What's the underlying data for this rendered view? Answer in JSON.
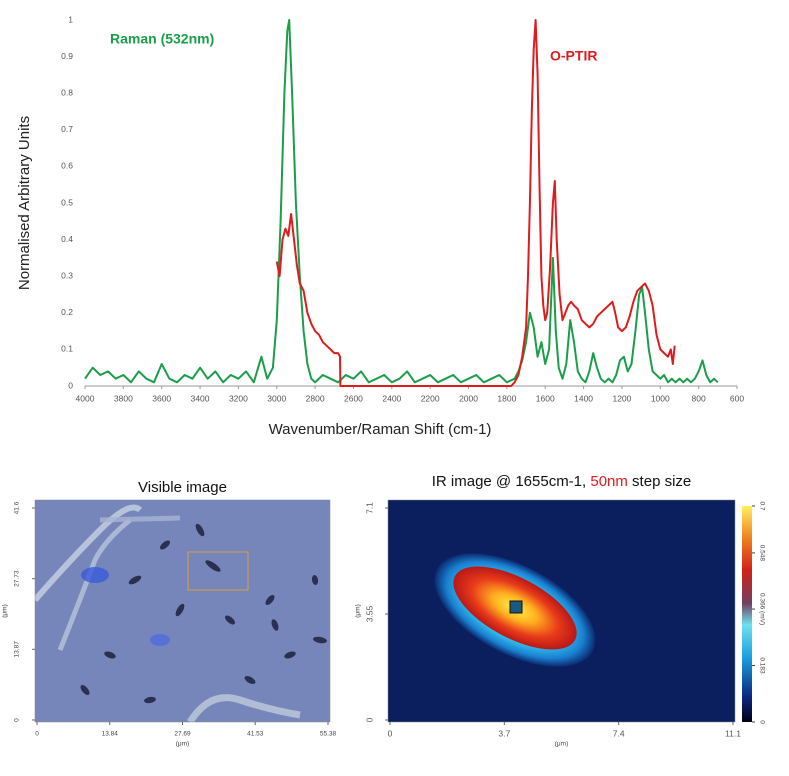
{
  "chart_data": [
    {
      "type": "line",
      "ylabel": "Normalised Arbitrary Units",
      "xlabel": "Wavenumber/Raman Shift (cm-1)",
      "xlim": [
        4000,
        600
      ],
      "xticks": [
        4000,
        3800,
        3600,
        3400,
        3200,
        3000,
        2800,
        2600,
        2400,
        2200,
        2000,
        1800,
        1600,
        1400,
        1200,
        1000,
        800,
        600
      ],
      "ylim": [
        0,
        1
      ],
      "yticks": [
        0,
        0.1,
        0.2,
        0.3,
        0.4,
        0.5,
        0.6,
        0.7,
        0.8,
        0.9,
        1
      ],
      "series": [
        {
          "name": "Raman (532nm)",
          "color": "#1a9e4a",
          "x": [
            4000,
            3960,
            3920,
            3880,
            3840,
            3800,
            3760,
            3720,
            3680,
            3640,
            3600,
            3560,
            3520,
            3480,
            3440,
            3400,
            3360,
            3320,
            3280,
            3240,
            3200,
            3160,
            3120,
            3080,
            3050,
            3020,
            3000,
            2980,
            2960,
            2945,
            2935,
            2920,
            2900,
            2880,
            2860,
            2840,
            2820,
            2800,
            2760,
            2720,
            2680,
            2640,
            2600,
            2560,
            2520,
            2480,
            2440,
            2400,
            2360,
            2320,
            2280,
            2240,
            2200,
            2160,
            2120,
            2080,
            2040,
            2000,
            1960,
            1920,
            1880,
            1840,
            1800,
            1760,
            1740,
            1720,
            1700,
            1680,
            1660,
            1640,
            1620,
            1600,
            1580,
            1560,
            1545,
            1530,
            1510,
            1490,
            1470,
            1450,
            1430,
            1410,
            1390,
            1370,
            1350,
            1330,
            1310,
            1290,
            1270,
            1250,
            1230,
            1210,
            1190,
            1170,
            1150,
            1130,
            1110,
            1095,
            1080,
            1060,
            1040,
            1020,
            1000,
            980,
            960,
            940,
            920,
            900,
            880,
            860,
            840,
            820,
            800,
            780,
            760,
            740,
            720,
            700
          ],
          "values": [
            0.02,
            0.05,
            0.03,
            0.04,
            0.02,
            0.03,
            0.01,
            0.04,
            0.02,
            0.01,
            0.06,
            0.02,
            0.01,
            0.03,
            0.02,
            0.05,
            0.02,
            0.04,
            0.01,
            0.03,
            0.02,
            0.04,
            0.01,
            0.08,
            0.02,
            0.05,
            0.18,
            0.45,
            0.8,
            0.97,
            1,
            0.8,
            0.5,
            0.3,
            0.15,
            0.06,
            0.02,
            0.01,
            0.03,
            0.02,
            0.01,
            0.03,
            0.02,
            0.04,
            0.01,
            0.02,
            0.03,
            0.01,
            0.02,
            0.04,
            0.01,
            0.02,
            0.03,
            0.01,
            0.02,
            0.03,
            0.01,
            0.02,
            0.03,
            0.01,
            0.02,
            0.03,
            0.01,
            0.02,
            0.04,
            0.07,
            0.12,
            0.2,
            0.16,
            0.08,
            0.12,
            0.06,
            0.1,
            0.35,
            0.15,
            0.05,
            0.02,
            0.06,
            0.18,
            0.12,
            0.04,
            0.02,
            0.01,
            0.04,
            0.09,
            0.05,
            0.02,
            0.01,
            0.02,
            0.01,
            0.03,
            0.07,
            0.08,
            0.04,
            0.06,
            0.15,
            0.25,
            0.27,
            0.2,
            0.1,
            0.04,
            0.03,
            0.02,
            0.03,
            0.01,
            0.02,
            0.01,
            0.02,
            0.01,
            0.02,
            0.01,
            0.02,
            0.04,
            0.07,
            0.03,
            0.01,
            0.02,
            0.01
          ]
        },
        {
          "name": "O-PTIR",
          "color": "#e01b1b",
          "x": [
            3000,
            2985,
            2970,
            2955,
            2940,
            2925,
            2910,
            2895,
            2880,
            2860,
            2840,
            2820,
            2800,
            2780,
            2760,
            2740,
            2720,
            2700,
            2680,
            2670,
            2668,
            2600,
            2400,
            2200,
            2000,
            1800,
            1778,
            1760,
            1740,
            1720,
            1700,
            1690,
            1680,
            1670,
            1660,
            1650,
            1640,
            1630,
            1620,
            1610,
            1600,
            1590,
            1575,
            1560,
            1550,
            1540,
            1525,
            1510,
            1495,
            1480,
            1465,
            1450,
            1430,
            1410,
            1390,
            1370,
            1350,
            1330,
            1310,
            1290,
            1270,
            1250,
            1235,
            1220,
            1200,
            1180,
            1160,
            1140,
            1120,
            1100,
            1080,
            1060,
            1040,
            1020,
            1000,
            980,
            960,
            945,
            935,
            925
          ],
          "values": [
            0.34,
            0.3,
            0.4,
            0.43,
            0.41,
            0.47,
            0.4,
            0.33,
            0.28,
            0.26,
            0.2,
            0.17,
            0.15,
            0.14,
            0.12,
            0.11,
            0.1,
            0.09,
            0.09,
            0.08,
            0,
            0,
            0,
            0,
            0,
            0,
            0,
            0.01,
            0.03,
            0.08,
            0.16,
            0.3,
            0.5,
            0.75,
            0.92,
            1,
            0.85,
            0.55,
            0.3,
            0.22,
            0.18,
            0.2,
            0.32,
            0.5,
            0.56,
            0.4,
            0.25,
            0.18,
            0.2,
            0.22,
            0.23,
            0.22,
            0.21,
            0.18,
            0.17,
            0.16,
            0.17,
            0.19,
            0.2,
            0.21,
            0.22,
            0.23,
            0.2,
            0.16,
            0.15,
            0.16,
            0.19,
            0.23,
            0.26,
            0.27,
            0.28,
            0.26,
            0.22,
            0.14,
            0.1,
            0.09,
            0.08,
            0.1,
            0.06,
            0.11
          ]
        }
      ]
    },
    {
      "type": "image",
      "title": "Visible image",
      "xlabel": "(μm)",
      "ylabel": "(μm)",
      "xlim": [
        0,
        55.38
      ],
      "xticks": [
        0,
        13.84,
        27.69,
        41.53,
        55.38
      ],
      "ylim": [
        0,
        41.6
      ],
      "yticks": [
        0,
        13.87,
        27.73,
        41.6
      ]
    },
    {
      "type": "heatmap",
      "title": [
        "IR image @ 1655cm-1, ",
        "50nm",
        " step size"
      ],
      "xlabel": "(μm)",
      "ylabel": "(μm)",
      "xlim": [
        0,
        11.1
      ],
      "xticks": [
        0,
        3.7,
        7.4,
        11.1
      ],
      "ylim": [
        0,
        7.1
      ],
      "yticks": [
        0,
        3.55,
        7.1
      ],
      "colorbar": {
        "lim": [
          0,
          0.7
        ],
        "ticks": [
          0,
          0.183,
          {
            "value": 0.366,
            "label": "0.366 (mV)"
          },
          0.548,
          0.7
        ]
      }
    }
  ]
}
